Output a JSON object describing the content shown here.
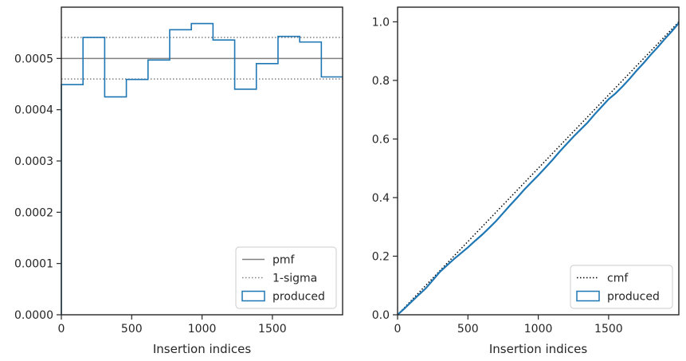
{
  "chart_data": [
    {
      "type": "step",
      "xlabel": "Insertion indices",
      "ylabel": "",
      "xlim": [
        0,
        1999
      ],
      "ylim": [
        0,
        0.0006
      ],
      "xticks": [
        0,
        500,
        1000,
        1500
      ],
      "xtick_labels": [
        "0",
        "500",
        "1000",
        "1500"
      ],
      "yticks": [
        0,
        0.0001,
        0.0002,
        0.0003,
        0.0004,
        0.0005
      ],
      "ytick_labels": [
        "0.0000",
        "0.0001",
        "0.0002",
        "0.0003",
        "0.0004",
        "0.0005"
      ],
      "grid": false,
      "legend_position": "lower-right",
      "reference_lines": [
        {
          "name": "pmf",
          "value": 0.0005,
          "style": "solid",
          "color": "#808080"
        },
        {
          "name": "1-sigma",
          "value": 0.000541,
          "style": "dotted",
          "color": "#808080"
        },
        {
          "name": "1-sigma",
          "value": 0.00046,
          "style": "dotted",
          "color": "#808080"
        }
      ],
      "series": [
        {
          "name": "produced",
          "color": "#1f77b4",
          "bin_edges": [
            0,
            154,
            308,
            462,
            616,
            770,
            924,
            1078,
            1232,
            1386,
            1540,
            1694,
            1848,
            1999
          ],
          "values": [
            0.000449,
            0.000541,
            0.000425,
            0.000459,
            0.000497,
            0.000556,
            0.000568,
            0.000536,
            0.00044,
            0.00049,
            0.000543,
            0.000532,
            0.000464
          ]
        }
      ],
      "legend": [
        {
          "label": "pmf",
          "style": "solid-line"
        },
        {
          "label": "1-sigma",
          "style": "dotted-line"
        },
        {
          "label": "produced",
          "style": "box"
        }
      ]
    },
    {
      "type": "step",
      "xlabel": "Insertion indices",
      "ylabel": "",
      "xlim": [
        0,
        1999
      ],
      "ylim": [
        0,
        1.05
      ],
      "xticks": [
        0,
        500,
        1000,
        1500
      ],
      "xtick_labels": [
        "0",
        "500",
        "1000",
        "1500"
      ],
      "yticks": [
        0,
        0.2,
        0.4,
        0.6,
        0.8,
        1.0
      ],
      "ytick_labels": [
        "0.0",
        "0.2",
        "0.4",
        "0.6",
        "0.8",
        "1.0"
      ],
      "grid": false,
      "legend_position": "lower-right",
      "series": [
        {
          "name": "cmf",
          "style": "dotted",
          "color": "#000000",
          "x": [
            0,
            1999
          ],
          "y": [
            0,
            1.0
          ]
        },
        {
          "name": "produced",
          "style": "step",
          "color": "#1f77b4",
          "x": [
            0,
            50,
            100,
            150,
            200,
            250,
            300,
            350,
            400,
            450,
            500,
            550,
            600,
            650,
            700,
            750,
            800,
            850,
            900,
            950,
            1000,
            1050,
            1100,
            1150,
            1200,
            1250,
            1300,
            1350,
            1400,
            1450,
            1500,
            1550,
            1600,
            1650,
            1700,
            1750,
            1800,
            1850,
            1900,
            1950,
            1999
          ],
          "y": [
            0,
            0.022,
            0.045,
            0.068,
            0.09,
            0.118,
            0.146,
            0.168,
            0.19,
            0.21,
            0.23,
            0.252,
            0.273,
            0.296,
            0.32,
            0.347,
            0.374,
            0.4,
            0.427,
            0.452,
            0.476,
            0.502,
            0.528,
            0.556,
            0.582,
            0.608,
            0.632,
            0.656,
            0.684,
            0.71,
            0.736,
            0.756,
            0.78,
            0.806,
            0.834,
            0.86,
            0.888,
            0.914,
            0.942,
            0.968,
            0.996
          ]
        }
      ],
      "legend": [
        {
          "label": "cmf",
          "style": "dotted-line"
        },
        {
          "label": "produced",
          "style": "box"
        }
      ]
    }
  ]
}
